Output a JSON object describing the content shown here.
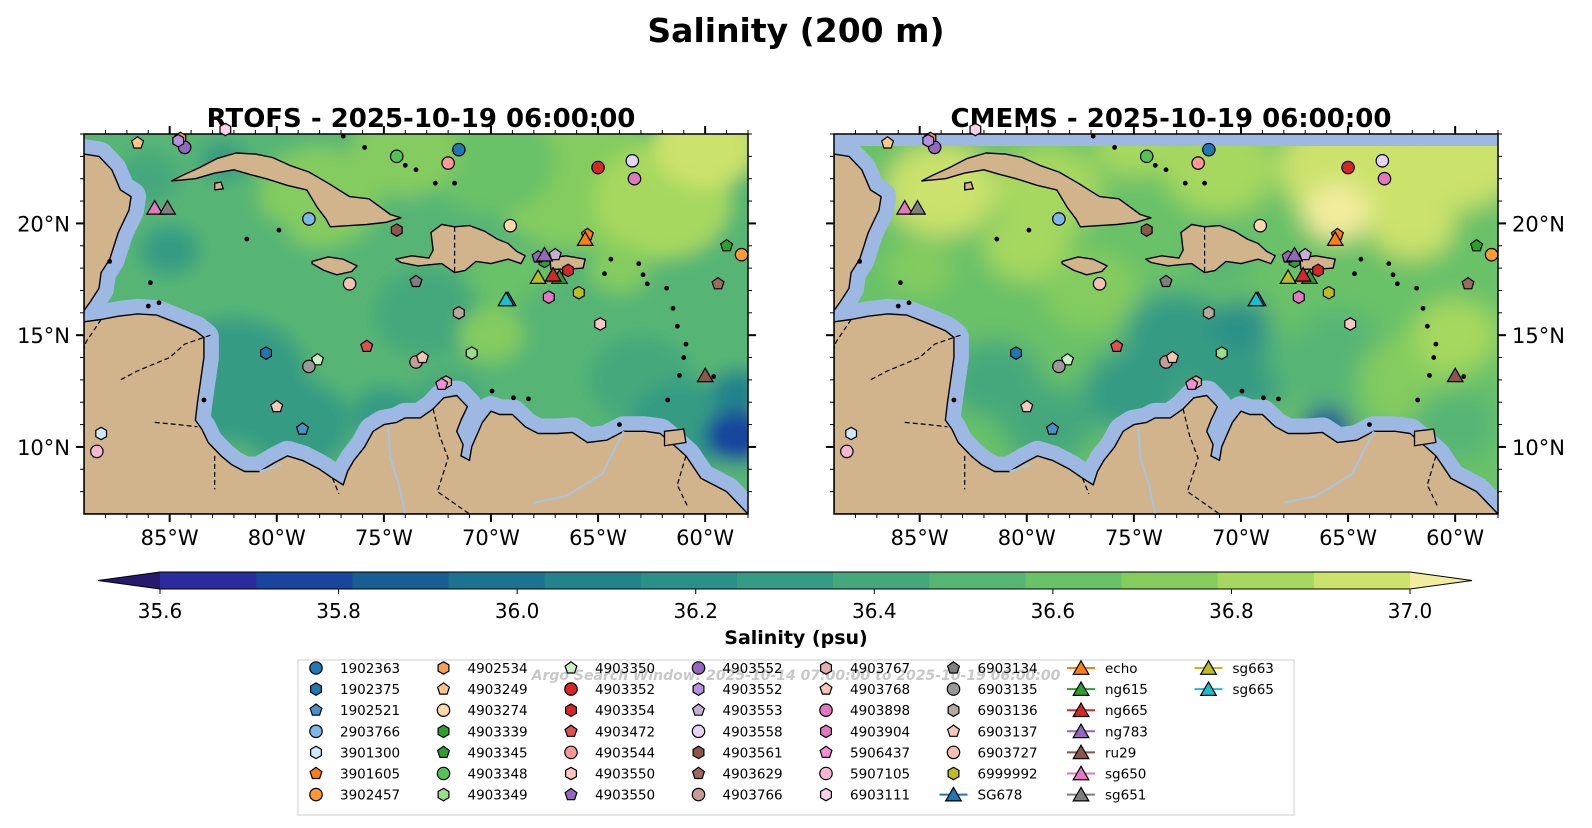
{
  "chart_data": {
    "type": "heatmap",
    "suptitle": "Salinity (200 m)",
    "panels": [
      {
        "id": "rtofs",
        "title": "RTOFS - 2025-10-19 06:00:00",
        "source": "RTOFS"
      },
      {
        "id": "cmems",
        "title": "CMEMS - 2025-10-19 06:00:00",
        "source": "CMEMS"
      }
    ],
    "lon_range": [
      -89,
      -58
    ],
    "lat_range": [
      7,
      24
    ],
    "x_ticks": [
      {
        "lon": -85,
        "label": "85°W"
      },
      {
        "lon": -80,
        "label": "80°W"
      },
      {
        "lon": -75,
        "label": "75°W"
      },
      {
        "lon": -70,
        "label": "70°W"
      },
      {
        "lon": -65,
        "label": "65°W"
      },
      {
        "lon": -60,
        "label": "60°W"
      }
    ],
    "y_ticks": [
      {
        "lat": 20,
        "label": "20°N"
      },
      {
        "lat": 15,
        "label": "15°N"
      },
      {
        "lat": 10,
        "label": "10°N"
      }
    ],
    "colorbar": {
      "label": "Salinity (psu)",
      "vmin": 35.6,
      "vmax": 37.0,
      "ticks": [
        "35.6",
        "35.8",
        "36.0",
        "36.2",
        "36.4",
        "36.6",
        "36.8",
        "37.0"
      ],
      "extend": "both",
      "colors": [
        "#271a6e",
        "#2a2b9d",
        "#19459c",
        "#185e92",
        "#1c738f",
        "#22838b",
        "#2a9088",
        "#359b83",
        "#45a87c",
        "#57b574",
        "#69c168",
        "#84cc5e",
        "#a6d85f",
        "#cbe26c",
        "#f2ec9d"
      ]
    },
    "background_colors": {
      "ocean_edge": "#9db9e3",
      "land": "#d2b48c",
      "deep": "#271a6e"
    },
    "watermark": "Argo Search Window: 2025-10-14 07:00:00 to 2025-10-19 06:00:00",
    "observations": [
      {
        "id": "1902363",
        "marker": "circle",
        "color": "#1f77b4",
        "lon": -71.5,
        "lat": 23.3
      },
      {
        "id": "1902375",
        "marker": "hexagon",
        "color": "#1f77b4",
        "lon": -80.5,
        "lat": 14.2
      },
      {
        "id": "1902521",
        "marker": "pentagon",
        "color": "#4a90c8",
        "lon": -78.8,
        "lat": 10.8
      },
      {
        "id": "2903766",
        "marker": "circle",
        "color": "#7fb8e8",
        "lon": -78.5,
        "lat": 20.2
      },
      {
        "id": "3901300",
        "marker": "hexagon",
        "color": "#cde8ff",
        "lon": -88.2,
        "lat": 10.6
      },
      {
        "id": "3901605",
        "marker": "pentagon",
        "color": "#ff7f0e",
        "lon": -65.5,
        "lat": 19.5
      },
      {
        "id": "3902457",
        "marker": "circle",
        "color": "#ff9933",
        "lon": -58.3,
        "lat": 18.6
      },
      {
        "id": "4902534",
        "marker": "hexagon",
        "color": "#f5a055",
        "lon": -84.5,
        "lat": 23.8
      },
      {
        "id": "4903249",
        "marker": "pentagon",
        "color": "#ffc58a",
        "lon": -86.5,
        "lat": 23.6
      },
      {
        "id": "4903274",
        "marker": "circle",
        "color": "#ffd8a8",
        "lon": -69.1,
        "lat": 19.9
      },
      {
        "id": "4903339",
        "marker": "hexagon",
        "color": "#2ca02c",
        "lon": -67.5,
        "lat": 18.3
      },
      {
        "id": "4903345",
        "marker": "pentagon",
        "color": "#2ca02c",
        "lon": -59.0,
        "lat": 19.0
      },
      {
        "id": "4903348",
        "marker": "circle",
        "color": "#55c255",
        "lon": -74.4,
        "lat": 23.0
      },
      {
        "id": "4903349",
        "marker": "hexagon",
        "color": "#98df8a",
        "lon": -70.9,
        "lat": 14.2
      },
      {
        "id": "4903350",
        "marker": "pentagon",
        "color": "#c8f0c0",
        "lon": -78.1,
        "lat": 13.9
      },
      {
        "id": "4903352",
        "marker": "circle",
        "color": "#d62728",
        "lon": -65.0,
        "lat": 22.5
      },
      {
        "id": "4903354",
        "marker": "hexagon",
        "color": "#d62728",
        "lon": -66.4,
        "lat": 17.9
      },
      {
        "id": "4903472",
        "marker": "pentagon",
        "color": "#e05050",
        "lon": -75.8,
        "lat": 14.5
      },
      {
        "id": "4903544",
        "marker": "circle",
        "color": "#ff9896",
        "lon": -72.0,
        "lat": 22.7
      },
      {
        "id": "4903550",
        "marker": "hexagon",
        "color": "#ffc4c4",
        "lon": -64.9,
        "lat": 15.5
      },
      {
        "id": "4903550",
        "marker": "pentagon",
        "color": "#9467bd",
        "lon": -67.8,
        "lat": 18.5
      },
      {
        "id": "4903552",
        "marker": "circle",
        "color": "#9467bd",
        "lon": -84.3,
        "lat": 23.4
      },
      {
        "id": "4903552",
        "marker": "hexagon",
        "color": "#b590e0",
        "lon": -84.6,
        "lat": 23.7
      },
      {
        "id": "4903553",
        "marker": "pentagon",
        "color": "#c5b0d5",
        "lon": -67.0,
        "lat": 18.6
      },
      {
        "id": "4903558",
        "marker": "circle",
        "color": "#e6d4f7",
        "lon": -63.4,
        "lat": 22.8
      },
      {
        "id": "4903561",
        "marker": "hexagon",
        "color": "#8c564b",
        "lon": -74.4,
        "lat": 19.7
      },
      {
        "id": "4903629",
        "marker": "pentagon",
        "color": "#9c6b5d",
        "lon": -59.4,
        "lat": 17.3
      },
      {
        "id": "4903766",
        "marker": "circle",
        "color": "#c49c94",
        "lon": -73.5,
        "lat": 13.8
      },
      {
        "id": "4903767",
        "marker": "hexagon",
        "color": "#e0b0a8",
        "lon": -72.1,
        "lat": 12.9
      },
      {
        "id": "4903768",
        "marker": "pentagon",
        "color": "#f5c5b8",
        "lon": -73.2,
        "lat": 14.0
      },
      {
        "id": "4903898",
        "marker": "circle",
        "color": "#e377c2",
        "lon": -63.3,
        "lat": 22.0
      },
      {
        "id": "4903904",
        "marker": "hexagon",
        "color": "#e377c2",
        "lon": -67.3,
        "lat": 16.7
      },
      {
        "id": "5906437",
        "marker": "pentagon",
        "color": "#f28fd4",
        "lon": -72.3,
        "lat": 12.8
      },
      {
        "id": "5907105",
        "marker": "circle",
        "color": "#f7b6d2",
        "lon": -88.4,
        "lat": 9.8
      },
      {
        "id": "6903111",
        "marker": "hexagon",
        "color": "#fbd0e8",
        "lon": -82.4,
        "lat": 24.2
      },
      {
        "id": "6903134",
        "marker": "pentagon",
        "color": "#7f7f7f",
        "lon": -73.5,
        "lat": 17.4
      },
      {
        "id": "6903135",
        "marker": "circle",
        "color": "#999999",
        "lon": -78.5,
        "lat": 13.6
      },
      {
        "id": "6903136",
        "marker": "hexagon",
        "color": "#b8a9a0",
        "lon": -71.5,
        "lat": 16.0
      },
      {
        "id": "6903137",
        "marker": "pentagon",
        "color": "#f5c9bc",
        "lon": -80.0,
        "lat": 11.8
      },
      {
        "id": "6903727",
        "marker": "circle",
        "color": "#f7c0b5",
        "lon": -76.6,
        "lat": 17.3
      },
      {
        "id": "6999992",
        "marker": "hexagon",
        "color": "#bcbd22",
        "lon": -65.9,
        "lat": 16.9
      },
      {
        "id": "SG678",
        "marker": "triangle",
        "color": "#1f77b4",
        "lon": -69.2,
        "lat": 16.6
      },
      {
        "id": "echo",
        "marker": "triangle",
        "color": "#ff7f0e",
        "lon": -65.6,
        "lat": 19.3
      },
      {
        "id": "ng615",
        "marker": "triangle",
        "color": "#2ca02c",
        "lon": -66.8,
        "lat": 17.6
      },
      {
        "id": "ng665",
        "marker": "triangle",
        "color": "#d62728",
        "lon": -67.1,
        "lat": 17.7
      },
      {
        "id": "ng783",
        "marker": "triangle",
        "color": "#9467bd",
        "lon": -67.5,
        "lat": 18.6
      },
      {
        "id": "ru29",
        "marker": "triangle",
        "color": "#8c564b",
        "lon": -60.0,
        "lat": 13.2
      },
      {
        "id": "sg650",
        "marker": "triangle",
        "color": "#e377c2",
        "lon": -85.7,
        "lat": 20.7
      },
      {
        "id": "sg651",
        "marker": "triangle",
        "color": "#7f7f7f",
        "lon": -85.1,
        "lat": 20.7
      },
      {
        "id": "sg663",
        "marker": "triangle",
        "color": "#bcbd22",
        "lon": -67.8,
        "lat": 17.6
      },
      {
        "id": "sg665",
        "marker": "triangle",
        "color": "#17becf",
        "lon": -69.3,
        "lat": 16.6
      }
    ]
  }
}
